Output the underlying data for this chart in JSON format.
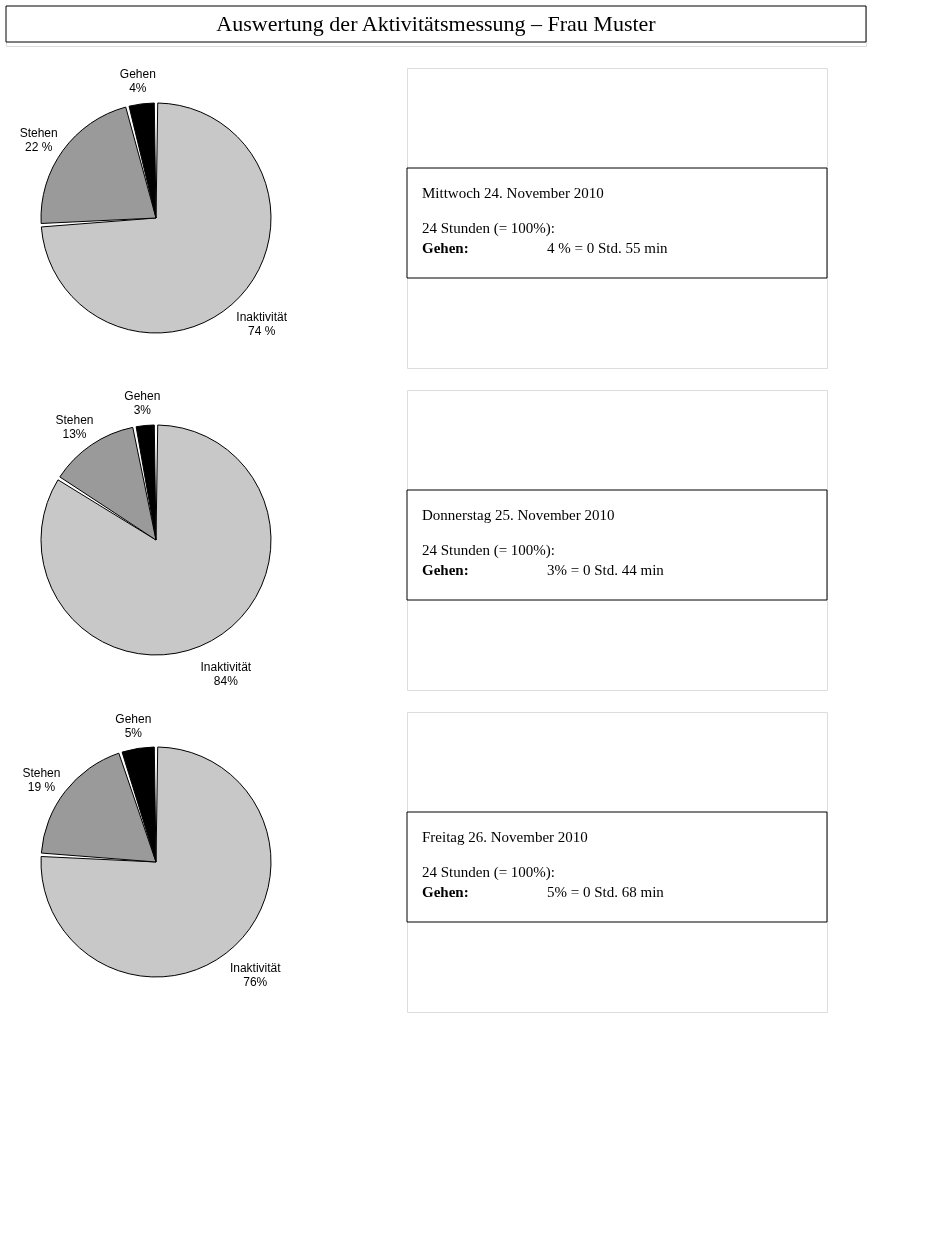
{
  "chart_data": [
    {
      "type": "pie",
      "title": "Auswertung der Aktivitätsmessung – Frau Muster",
      "categories": [
        "Inaktivität",
        "Stehen",
        "Gehen"
      ],
      "values": [
        74,
        22,
        4
      ],
      "value_labels": [
        "74 %",
        "22 %",
        "4%"
      ],
      "colors": [
        "#c8c8c8",
        "#9a9a9a",
        "#000000"
      ],
      "legend": false,
      "annotations": [
        "Mittwoch 24. November 2010",
        "24 Stunden (= 100%):",
        "Gehen:",
        "4 % =  0 Std. 55 min"
      ]
    },
    {
      "type": "pie",
      "categories": [
        "Inaktivität",
        "Stehen",
        "Gehen"
      ],
      "values": [
        84,
        13,
        3
      ],
      "value_labels": [
        "84%",
        "13%",
        "3%"
      ],
      "colors": [
        "#c8c8c8",
        "#9a9a9a",
        "#000000"
      ],
      "legend": false,
      "annotations": [
        "Donnerstag 25. November 2010",
        "24 Stunden (= 100%):",
        "Gehen:",
        "3% =  0 Std. 44 min"
      ]
    },
    {
      "type": "pie",
      "categories": [
        "Inaktivität",
        "Stehen",
        "Gehen"
      ],
      "values": [
        76,
        19,
        5
      ],
      "value_labels": [
        "76%",
        "19 %",
        "5%"
      ],
      "colors": [
        "#c8c8c8",
        "#9a9a9a",
        "#000000"
      ],
      "legend": false,
      "annotations": [
        "Freitag 26. November 2010",
        "24 Stunden (= 100%):",
        "Gehen:",
        "5% =  0 Std. 68 min"
      ]
    }
  ]
}
